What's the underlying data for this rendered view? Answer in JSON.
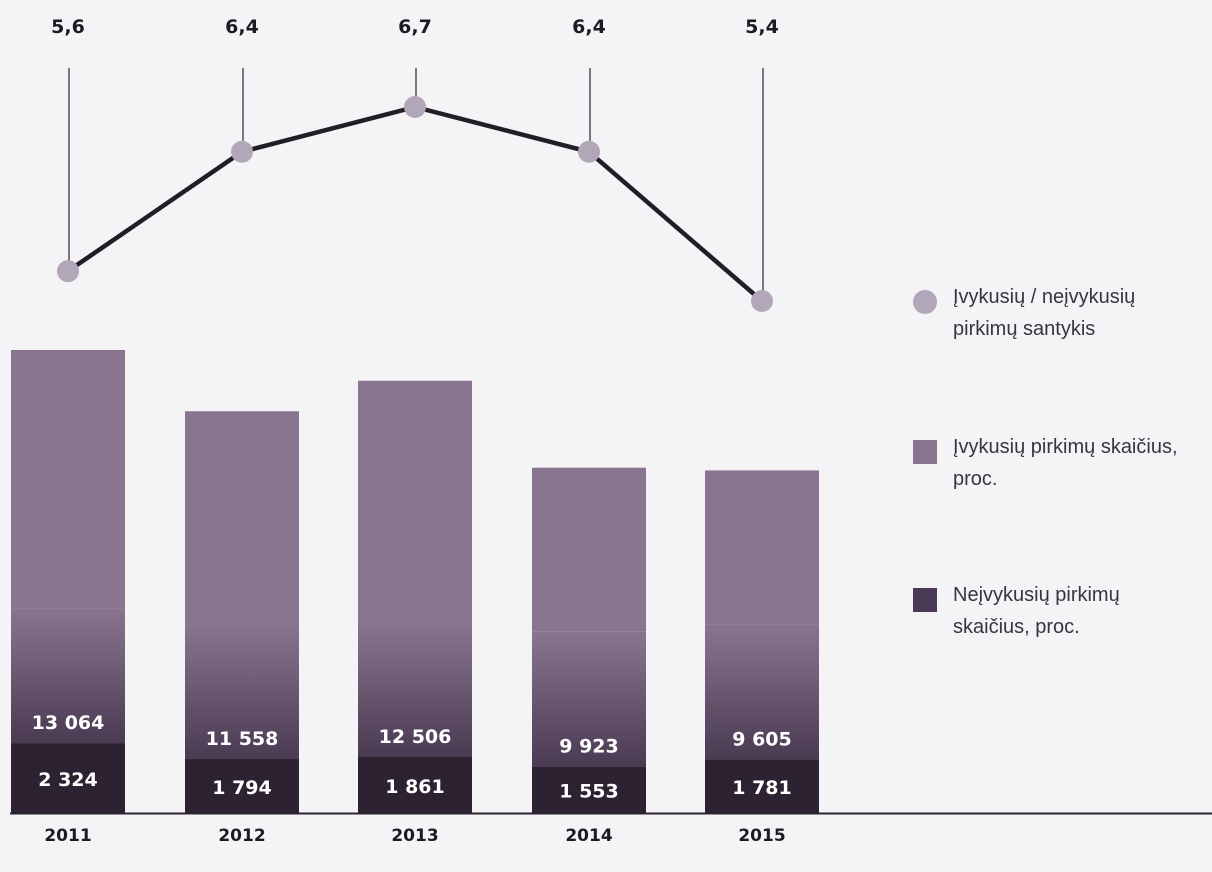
{
  "chart_data": {
    "type": "bar",
    "categories": [
      "2011",
      "2012",
      "2013",
      "2014",
      "2015"
    ],
    "series": [
      {
        "name": "Įvykusių pirkimų skaičius, proc.",
        "values": [
          13064,
          11558,
          12506,
          9923,
          9605
        ],
        "labels": [
          "13 064",
          "11 558",
          "12 506",
          "9 923",
          "9 605"
        ],
        "color": "#8a7590"
      },
      {
        "name": "Neįvykusių pirkimų skaičius, proc.",
        "values": [
          2324,
          1794,
          1861,
          1553,
          1781
        ],
        "labels": [
          "2 324",
          "1 794",
          "1 861",
          "1 553",
          "1 781"
        ],
        "color": "#2d2232"
      },
      {
        "name": "Įvykusių / neįvykusių pirkimų santykis",
        "type": "line",
        "values": [
          5.6,
          6.4,
          6.7,
          6.4,
          5.4
        ],
        "labels": [
          "5,6",
          "6,4",
          "6,7",
          "6,4",
          "5,4"
        ],
        "color": "#b2a7b9"
      }
    ],
    "legend": {
      "position": "right",
      "items": [
        {
          "label": "Įvykusių / neįvykusių pirkimų santykis",
          "shape": "circle",
          "color": "#b2a7b9"
        },
        {
          "label": "Įvykusių pirkimų skaičius, proc.",
          "shape": "square",
          "color": "#8a7590"
        },
        {
          "label": "Neįvykusių pirkimų skaičius, proc.",
          "shape": "square",
          "color": "#4b3a55"
        }
      ]
    },
    "grid": false
  }
}
